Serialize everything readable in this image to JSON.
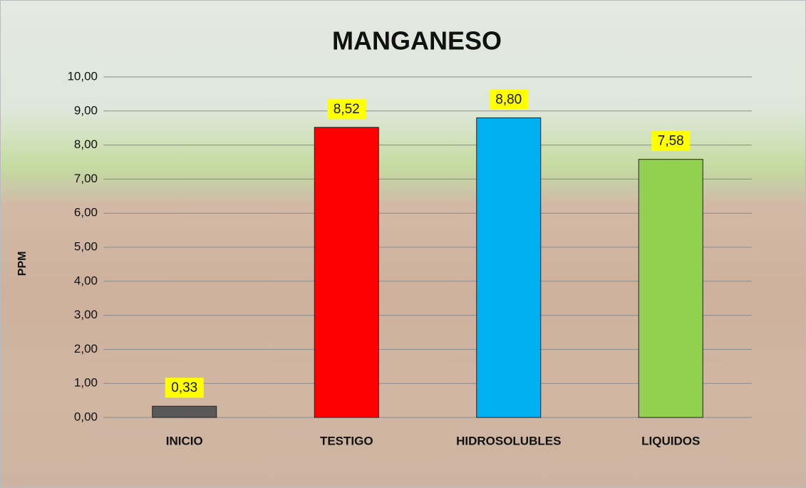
{
  "chart_data": {
    "type": "bar",
    "title": "MANGANESO",
    "y_label": "PPM",
    "categories": [
      "INICIO",
      "TESTIGO",
      "HIDROSOLUBLES",
      "LIQUIDOS"
    ],
    "values": [
      0.33,
      8.52,
      8.8,
      7.58
    ],
    "value_labels": [
      "0,33",
      "8,52",
      "8,80",
      "7,58"
    ],
    "colors": [
      "#595959",
      "#ff0000",
      "#00b0f0",
      "#92d050"
    ],
    "ylim": [
      0,
      10
    ],
    "yticks": [
      {
        "value": 0,
        "label": "0,00"
      },
      {
        "value": 1,
        "label": "1,00"
      },
      {
        "value": 2,
        "label": "2,00"
      },
      {
        "value": 3,
        "label": "3,00"
      },
      {
        "value": 4,
        "label": "4,00"
      },
      {
        "value": 5,
        "label": "5,00"
      },
      {
        "value": 6,
        "label": "6,00"
      },
      {
        "value": 7,
        "label": "7,00"
      },
      {
        "value": 8,
        "label": "8,00"
      },
      {
        "value": 9,
        "label": "9,00"
      },
      {
        "value": 10,
        "label": "10,00"
      }
    ],
    "grid": true
  }
}
